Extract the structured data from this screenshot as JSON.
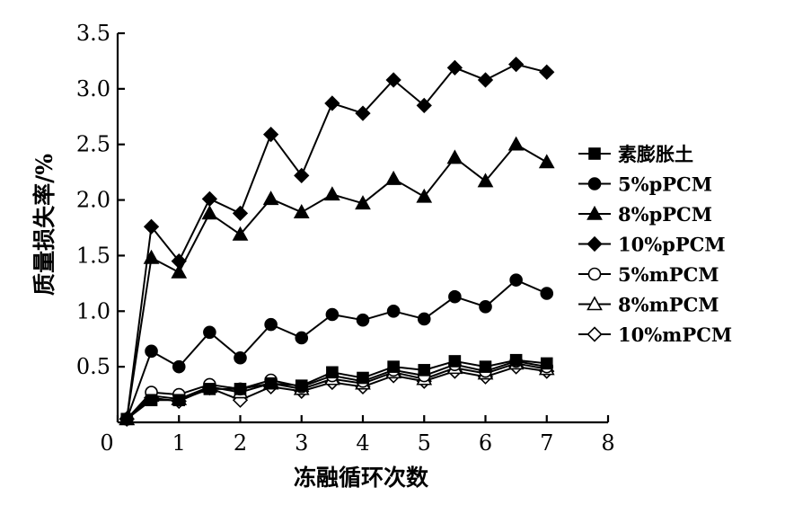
{
  "chart_data": {
    "type": "line",
    "title": "",
    "xlabel": "冻融循环次数",
    "ylabel": "质量损失率/%",
    "xlim": [
      0,
      8
    ],
    "ylim": [
      0,
      3.5
    ],
    "x_ticks": [
      0,
      1,
      2,
      3,
      4,
      5,
      6,
      7,
      8
    ],
    "y_ticks": [
      0.5,
      1.0,
      1.5,
      2.0,
      2.5,
      3.0,
      3.5
    ],
    "x_tick_labels": [
      "0",
      "1",
      "2",
      "3",
      "4",
      "5",
      "6",
      "7",
      "8"
    ],
    "y_tick_labels": [
      "0.5",
      "1.0",
      "1.5",
      "2.0",
      "2.5",
      "3.0",
      "3.5"
    ],
    "grid": false,
    "legend_position": "right",
    "x": [
      0.15,
      0.55,
      1,
      1.5,
      2,
      2.5,
      3,
      3.5,
      4,
      4.5,
      5,
      5.5,
      6,
      6.5,
      7
    ],
    "series": [
      {
        "name": "素膨胀土",
        "marker": "square-filled",
        "values": [
          0.03,
          0.2,
          0.2,
          0.3,
          0.3,
          0.35,
          0.33,
          0.45,
          0.4,
          0.5,
          0.47,
          0.55,
          0.5,
          0.56,
          0.53
        ]
      },
      {
        "name": "5%pPCM",
        "marker": "circle-filled",
        "values": [
          0.03,
          0.64,
          0.5,
          0.81,
          0.58,
          0.88,
          0.76,
          0.97,
          0.92,
          1.0,
          0.93,
          1.13,
          1.04,
          1.28,
          1.16
        ]
      },
      {
        "name": "8%pPCM",
        "marker": "triangle-filled",
        "values": [
          0.03,
          1.48,
          1.35,
          1.88,
          1.69,
          2.01,
          1.89,
          2.05,
          1.97,
          2.19,
          2.03,
          2.38,
          2.17,
          2.5,
          2.34
        ]
      },
      {
        "name": "10%pPCM",
        "marker": "diamond-filled",
        "values": [
          0.03,
          1.76,
          1.45,
          2.01,
          1.88,
          2.59,
          2.22,
          2.87,
          2.78,
          3.08,
          2.85,
          3.19,
          3.08,
          3.22,
          3.15
        ]
      },
      {
        "name": "5%mPCM",
        "marker": "circle-open",
        "values": [
          0.03,
          0.27,
          0.25,
          0.34,
          0.3,
          0.38,
          0.32,
          0.42,
          0.37,
          0.47,
          0.42,
          0.52,
          0.46,
          0.55,
          0.5
        ]
      },
      {
        "name": "8%mPCM",
        "marker": "triangle-open",
        "values": [
          0.03,
          0.24,
          0.21,
          0.32,
          0.27,
          0.35,
          0.3,
          0.39,
          0.35,
          0.45,
          0.39,
          0.49,
          0.44,
          0.53,
          0.48
        ]
      },
      {
        "name": "10%mPCM",
        "marker": "diamond-open",
        "values": [
          0.03,
          0.22,
          0.19,
          0.31,
          0.2,
          0.32,
          0.28,
          0.36,
          0.32,
          0.42,
          0.37,
          0.46,
          0.41,
          0.5,
          0.46
        ]
      }
    ]
  }
}
